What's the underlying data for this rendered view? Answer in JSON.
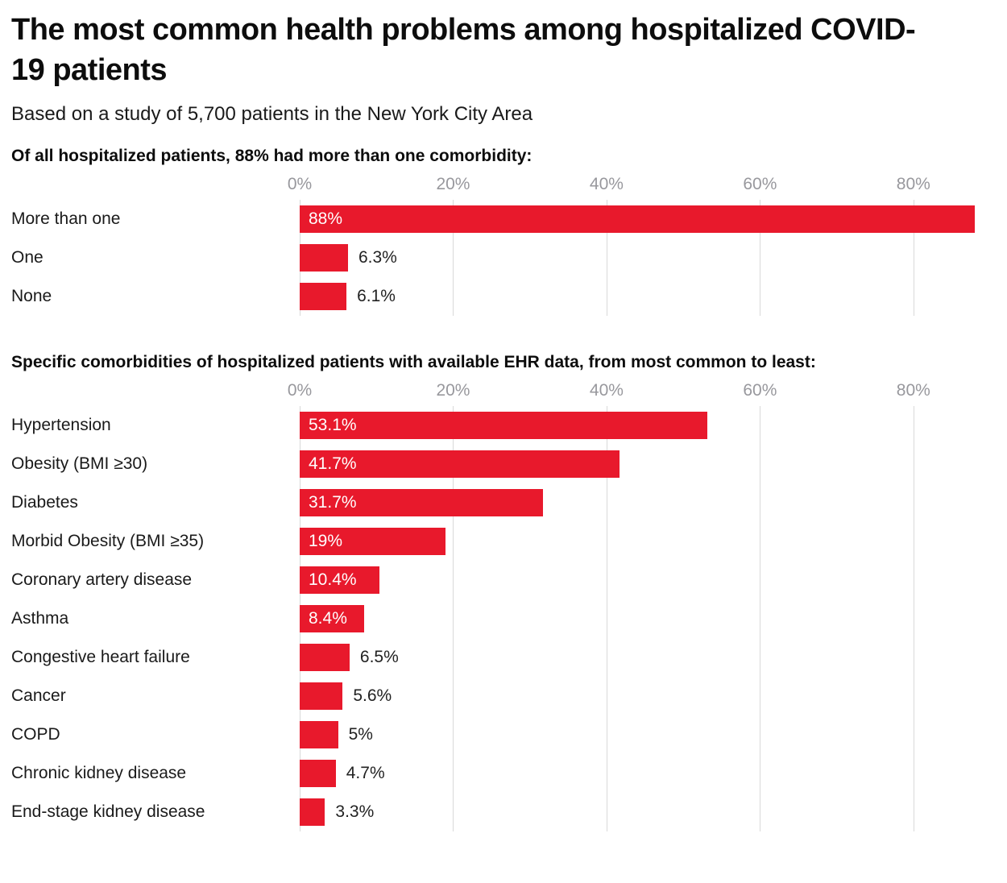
{
  "page": {
    "title": "The most common health problems among hospitalized COVID-19 patients",
    "subtitle": "Based on a study of 5,700 patients in the New York City Area"
  },
  "colors": {
    "bar": "#e8192c",
    "gridline": "#d9d9d9",
    "tick_text": "#98989d",
    "value_inside_text": "#ffffff",
    "value_outside_text": "#222222"
  },
  "chart_data": [
    {
      "type": "bar",
      "orientation": "horizontal",
      "title": "Of all hospitalized patients, 88% had more than one comorbidity:",
      "categories": [
        "More than one",
        "One",
        "None"
      ],
      "values": [
        88,
        6.3,
        6.1
      ],
      "value_labels": [
        "88%",
        "6.3%",
        "6.1%"
      ],
      "xlim": [
        0,
        88
      ],
      "x_ticks": [
        "0%",
        "20%",
        "40%",
        "60%",
        "80%"
      ],
      "x_tick_values": [
        0,
        20,
        40,
        60,
        80
      ],
      "grid": true,
      "legend": "none",
      "bar_color": "#e8192c"
    },
    {
      "type": "bar",
      "orientation": "horizontal",
      "title": "Specific comorbidities of hospitalized patients with available EHR data, from most common to least:",
      "categories": [
        "Hypertension",
        "Obesity (BMI ≥30)",
        "Diabetes",
        "Morbid Obesity (BMI ≥35)",
        "Coronary artery disease",
        "Asthma",
        "Congestive heart failure",
        "Cancer",
        "COPD",
        "Chronic kidney disease",
        "End-stage kidney disease"
      ],
      "values": [
        53.1,
        41.7,
        31.7,
        19,
        10.4,
        8.4,
        6.5,
        5.6,
        5,
        4.7,
        3.3
      ],
      "value_labels": [
        "53.1%",
        "41.7%",
        "31.7%",
        "19%",
        "10.4%",
        "8.4%",
        "6.5%",
        "5.6%",
        "5%",
        "4.7%",
        "3.3%"
      ],
      "xlim": [
        0,
        88
      ],
      "x_ticks": [
        "0%",
        "20%",
        "40%",
        "60%",
        "80%"
      ],
      "x_tick_values": [
        0,
        20,
        40,
        60,
        80
      ],
      "grid": true,
      "legend": "none",
      "bar_color": "#e8192c"
    }
  ]
}
